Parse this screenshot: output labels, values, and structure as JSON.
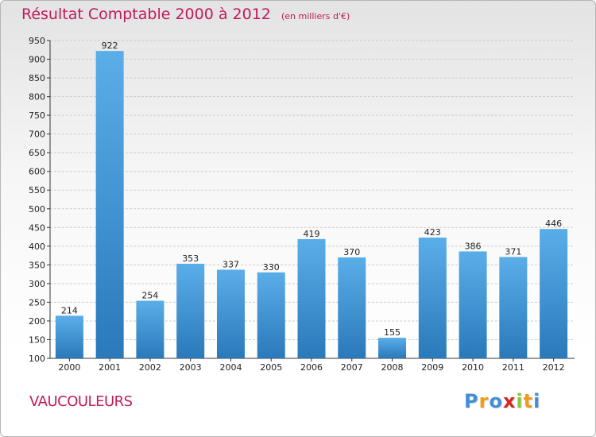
{
  "chart_data": {
    "type": "bar",
    "title": "Résultat Comptable 2000 à 2012",
    "subtitle": "(en milliers d'€)",
    "categories": [
      "2000",
      "2001",
      "2002",
      "2003",
      "2004",
      "2005",
      "2006",
      "2007",
      "2008",
      "2009",
      "2010",
      "2011",
      "2012"
    ],
    "values": [
      214,
      922,
      254,
      353,
      337,
      330,
      419,
      370,
      155,
      423,
      386,
      371,
      446
    ],
    "ylim": [
      100,
      950
    ],
    "yticks": [
      100,
      150,
      200,
      250,
      300,
      350,
      400,
      450,
      500,
      550,
      600,
      650,
      700,
      750,
      800,
      850,
      900,
      950
    ],
    "grid": true,
    "xlabel": "",
    "ylabel": "",
    "bar_color_top": "#5aaee8",
    "bar_color_bottom": "#2a79bb"
  },
  "location": "VAUCOULEURS",
  "logo": {
    "letters": [
      "P",
      "r",
      "o",
      "x",
      "i",
      "t",
      "i"
    ],
    "colors": [
      "#3f8fd6",
      "#f29a1a",
      "#3f8fd6",
      "#d8261f",
      "#8bc43f",
      "#f29a1a",
      "#3f8fd6"
    ]
  },
  "colors": {
    "title": "#c21a5b",
    "grid": "#cccccc",
    "axis": "#333333"
  }
}
